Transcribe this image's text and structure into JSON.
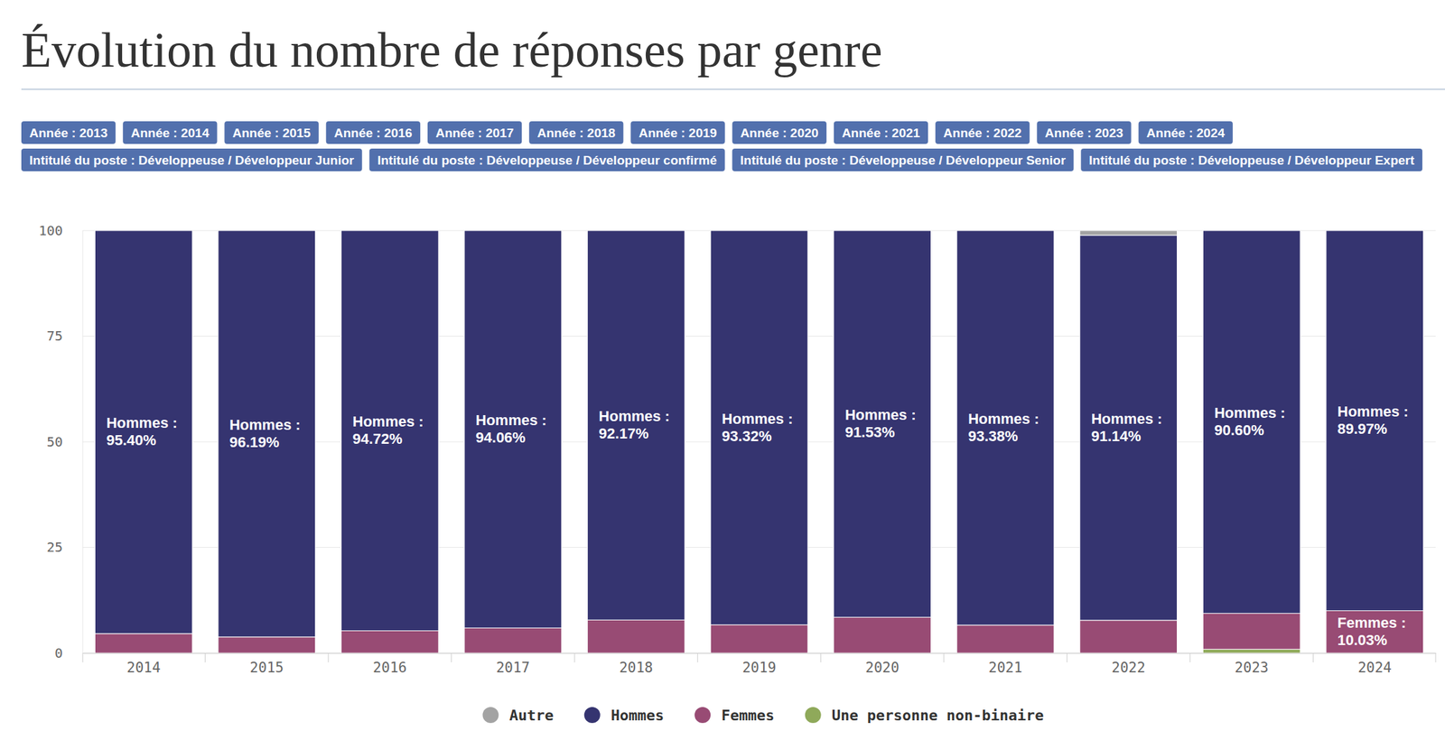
{
  "chart_data": {
    "type": "bar",
    "title": "Évolution du nombre de réponses par genre",
    "stacked": true,
    "data_labels": true,
    "grid": true,
    "legend": "bottom",
    "categories": [
      "2014",
      "2015",
      "2016",
      "2017",
      "2018",
      "2019",
      "2020",
      "2021",
      "2022",
      "2023",
      "2024"
    ],
    "ylim": [
      0,
      100
    ],
    "yticks": [
      0,
      25,
      50,
      75,
      100
    ],
    "series": [
      {
        "name": "Autre",
        "color": "#a3a3a3",
        "values": [
          null,
          null,
          null,
          null,
          null,
          null,
          null,
          null,
          1.1,
          null,
          null
        ]
      },
      {
        "name": "Hommes",
        "color": "#353470",
        "values": [
          95.4,
          96.19,
          94.72,
          94.06,
          92.17,
          93.32,
          91.53,
          93.38,
          91.14,
          90.6,
          89.97
        ],
        "value_labels": [
          "Hommes : 95.40%",
          "Hommes : 96.19%",
          "Hommes : 94.72%",
          "Hommes : 94.06%",
          "Hommes : 92.17%",
          "Hommes : 93.32%",
          "Hommes : 91.53%",
          "Hommes : 93.38%",
          "Hommes : 91.14%",
          "Hommes : 90.60%",
          "Hommes : 89.97%"
        ]
      },
      {
        "name": "Femmes",
        "color": "#984b74",
        "values": [
          4.6,
          3.81,
          5.28,
          5.94,
          7.83,
          6.68,
          8.47,
          6.62,
          7.76,
          8.5,
          10.03
        ],
        "value_labels": [
          null,
          null,
          null,
          null,
          null,
          null,
          null,
          null,
          null,
          null,
          "Femmes : 10.03%"
        ]
      },
      {
        "name": "Une personne non-binaire",
        "color": "#8fa95a",
        "values": [
          null,
          null,
          null,
          null,
          null,
          null,
          null,
          null,
          null,
          0.9,
          null
        ]
      }
    ]
  },
  "filters": [
    "Année : 2013",
    "Année : 2014",
    "Année : 2015",
    "Année : 2016",
    "Année : 2017",
    "Année : 2018",
    "Année : 2019",
    "Année : 2020",
    "Année : 2021",
    "Année : 2022",
    "Année : 2023",
    "Année : 2024",
    "Intitulé du poste : Développeuse / Développeur Junior",
    "Intitulé du poste : Développeuse / Développeur confirmé",
    "Intitulé du poste : Développeuse / Développeur Senior",
    "Intitulé du poste : Développeuse / Développeur Expert"
  ]
}
